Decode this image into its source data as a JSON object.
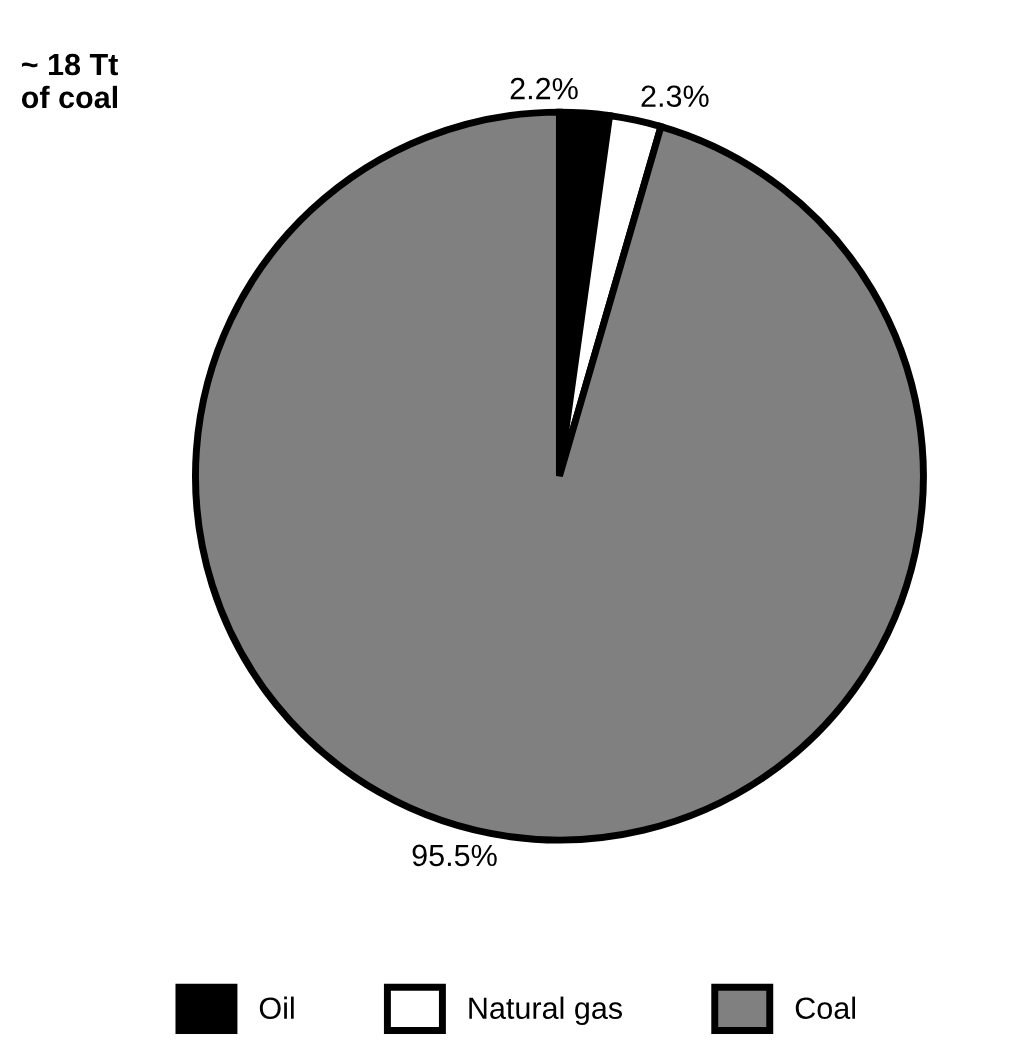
{
  "chart_data": {
    "type": "pie",
    "title": "~ 18 Tt\nof coal",
    "categories": [
      "Oil",
      "Natural gas",
      "Coal"
    ],
    "values": [
      2.2,
      2.3,
      95.5
    ],
    "colors": [
      "#000000",
      "#ffffff",
      "#808080"
    ],
    "value_labels": [
      "2.2%",
      "2.3%",
      "95.5%"
    ],
    "legend": "bottom"
  }
}
